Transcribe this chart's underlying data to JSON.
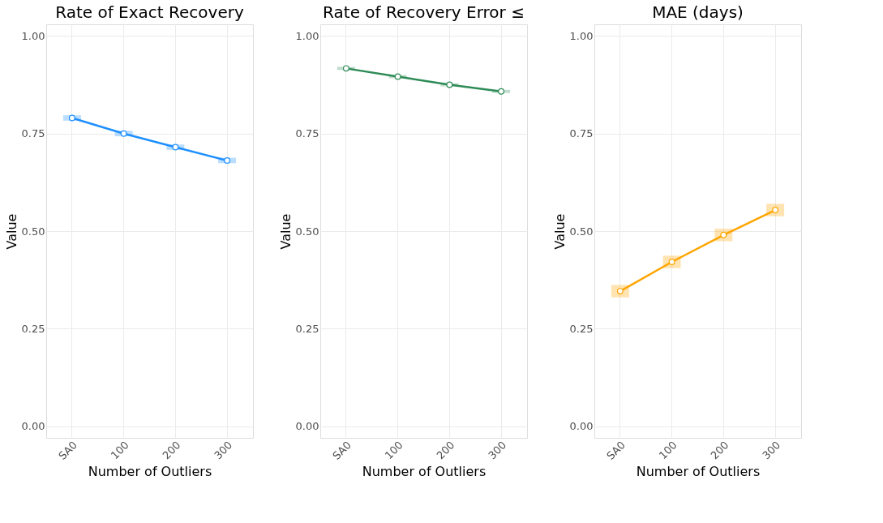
{
  "chart_data": [
    {
      "type": "line",
      "title": "Rate of Exact Recovery",
      "xlabel": "Number of Outliers",
      "ylabel": "Value",
      "categories": [
        "SA0",
        "100",
        "200",
        "300"
      ],
      "series": [
        {
          "color": "#1e90ff",
          "values": [
            0.79,
            0.75,
            0.715,
            0.681
          ],
          "errors": [
            0.007,
            0.007,
            0.007,
            0.007
          ]
        }
      ],
      "ylim": [
        -0.03,
        1.03
      ],
      "yticks": [
        {
          "value": 0,
          "label": "0.00"
        },
        {
          "value": 0.25,
          "label": "0.25"
        },
        {
          "value": 0.5,
          "label": "0.50"
        },
        {
          "value": 0.75,
          "label": "0.75"
        },
        {
          "value": 1,
          "label": "1.00"
        }
      ],
      "grid": true,
      "marker": "circle",
      "line_style": "solid"
    },
    {
      "type": "line",
      "title": "Rate of Recovery Error ≤",
      "xlabel": "Number of Outliers",
      "ylabel": "Value",
      "categories": [
        "SA0",
        "100",
        "200",
        "300"
      ],
      "series": [
        {
          "color": "#2e8b57",
          "values": [
            0.917,
            0.896,
            0.875,
            0.858
          ],
          "errors": [
            0.004,
            0.004,
            0.004,
            0.004
          ]
        }
      ],
      "ylim": [
        -0.03,
        1.03
      ],
      "yticks": [
        {
          "value": 0,
          "label": "0.00"
        },
        {
          "value": 0.25,
          "label": "0.25"
        },
        {
          "value": 0.5,
          "label": "0.50"
        },
        {
          "value": 0.75,
          "label": "0.75"
        },
        {
          "value": 1,
          "label": "1.00"
        }
      ],
      "grid": true,
      "marker": "circle",
      "line_style": "solid"
    },
    {
      "type": "line",
      "title": "MAE (days)",
      "xlabel": "Number of Outliers",
      "ylabel": "Value",
      "categories": [
        "SA0",
        "100",
        "200",
        "300"
      ],
      "series": [
        {
          "color": "#ffa500",
          "values": [
            0.346,
            0.421,
            0.49,
            0.554
          ],
          "errors": [
            0.016,
            0.016,
            0.016,
            0.016
          ]
        }
      ],
      "ylim": [
        -0.03,
        1.03
      ],
      "yticks": [
        {
          "value": 0,
          "label": "0.00"
        },
        {
          "value": 0.25,
          "label": "0.25"
        },
        {
          "value": 0.5,
          "label": "0.50"
        },
        {
          "value": 0.75,
          "label": "0.75"
        },
        {
          "value": 1,
          "label": "1.00"
        }
      ],
      "grid": true,
      "marker": "circle",
      "line_style": "solid"
    }
  ]
}
